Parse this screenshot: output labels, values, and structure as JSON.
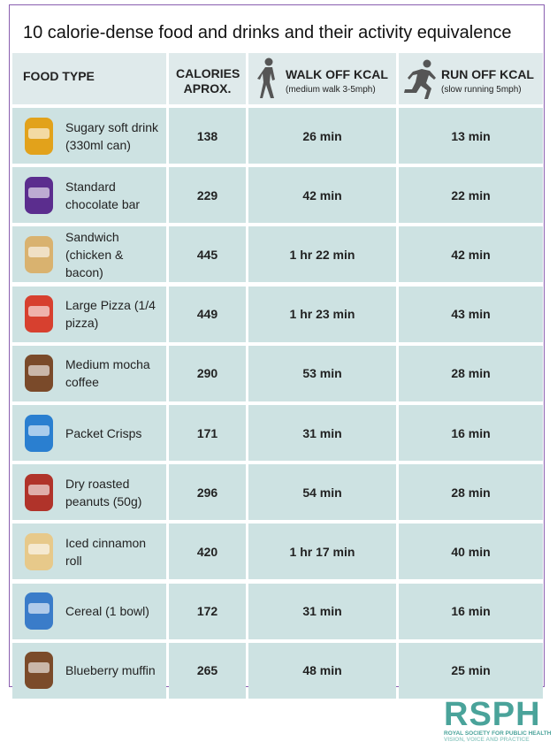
{
  "title": "10 calorie-dense food and drinks and their activity equivalence",
  "header": {
    "food_type": "FOOD TYPE",
    "calories": "CALORIES APROX.",
    "walk": "WALK OFF KCAL",
    "walk_sub": "(medium walk 3-5mph)",
    "run": "RUN OFF KCAL",
    "run_sub": "(slow running 5mph)"
  },
  "table": {
    "rows": [
      [
        "Sugary soft drink (330ml can)",
        138,
        "26 min",
        "13 min"
      ],
      [
        "Standard chocolate bar",
        229,
        "42 min",
        "22 min"
      ],
      [
        "Sandwich (chicken & bacon)",
        445,
        "1 hr 22 min",
        "42 min"
      ],
      [
        "Large Pizza (1/4 pizza)",
        449,
        "1 hr 23 min",
        "43 min"
      ],
      [
        "Medium mocha coffee",
        290,
        "53 min",
        "28 min"
      ],
      [
        "Packet Crisps",
        171,
        "31 min",
        "16 min"
      ],
      [
        "Dry roasted peanuts (50g)",
        296,
        "54 min",
        "28 min"
      ],
      [
        "Iced cinnamon roll",
        420,
        "1 hr 17 min",
        "40 min"
      ],
      [
        "Cereal (1 bowl)",
        172,
        "31 min",
        "16 min"
      ],
      [
        "Blueberry muffin",
        265,
        "48 min",
        "25 min"
      ]
    ]
  },
  "logo": {
    "name": "RSPH",
    "line1": "ROYAL SOCIETY FOR PUBLIC HEALTH",
    "line2": "VISION, VOICE AND PRACTICE"
  }
}
